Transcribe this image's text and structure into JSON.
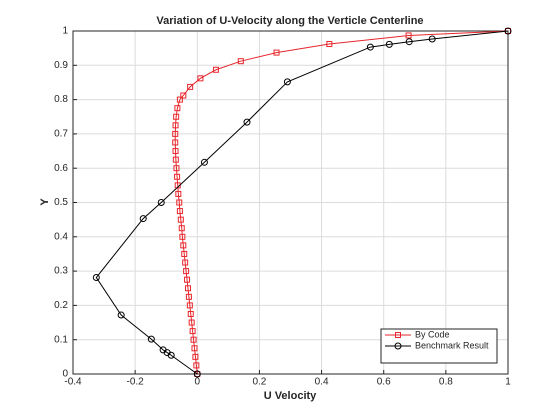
{
  "chart_data": {
    "type": "line",
    "title": "Variation of U-Velocity along the Verticle Centerline",
    "xlabel": "U Velocity",
    "ylabel": "Y",
    "xlim": [
      -0.4,
      1
    ],
    "ylim": [
      0,
      1
    ],
    "xticks": [
      -0.4,
      -0.2,
      0,
      0.2,
      0.4,
      0.6,
      0.8,
      1
    ],
    "yticks": [
      0,
      0.1,
      0.2,
      0.3,
      0.4,
      0.5,
      0.6,
      0.7,
      0.8,
      0.9,
      1
    ],
    "grid": true,
    "legend": "lower right",
    "series": [
      {
        "name": "By Code",
        "color": "#e8262b",
        "marker": "square",
        "x": [
          0,
          -0.003,
          -0.006,
          -0.009,
          -0.012,
          -0.015,
          -0.018,
          -0.021,
          -0.024,
          -0.027,
          -0.03,
          -0.033,
          -0.036,
          -0.039,
          -0.042,
          -0.045,
          -0.048,
          -0.05,
          -0.053,
          -0.056,
          -0.058,
          -0.061,
          -0.063,
          -0.065,
          -0.067,
          -0.069,
          -0.07,
          -0.071,
          -0.071,
          -0.07,
          -0.068,
          -0.064,
          -0.056,
          -0.045,
          -0.023,
          0.01,
          0.06,
          0.14,
          0.255,
          0.425,
          0.68,
          1
        ],
        "values": [
          0,
          0.025,
          0.05,
          0.075,
          0.1,
          0.125,
          0.15,
          0.175,
          0.2,
          0.225,
          0.25,
          0.275,
          0.3,
          0.325,
          0.35,
          0.375,
          0.4,
          0.425,
          0.45,
          0.475,
          0.5,
          0.525,
          0.55,
          0.575,
          0.6,
          0.625,
          0.65,
          0.675,
          0.7,
          0.725,
          0.75,
          0.775,
          0.8,
          0.812,
          0.837,
          0.862,
          0.887,
          0.912,
          0.937,
          0.962,
          0.987,
          1
        ]
      },
      {
        "name": "Benchmark Result",
        "color": "#000000",
        "marker": "circle",
        "x": [
          0,
          -0.084,
          -0.097,
          -0.11,
          -0.148,
          -0.245,
          -0.325,
          -0.174,
          -0.116,
          0.023,
          0.16,
          0.29,
          0.557,
          0.618,
          0.682,
          0.756,
          1
        ],
        "values": [
          0,
          0.0547,
          0.0625,
          0.0703,
          0.1016,
          0.1719,
          0.2813,
          0.4531,
          0.5,
          0.6172,
          0.7344,
          0.8516,
          0.9531,
          0.9609,
          0.9688,
          0.9766,
          1
        ]
      }
    ]
  }
}
